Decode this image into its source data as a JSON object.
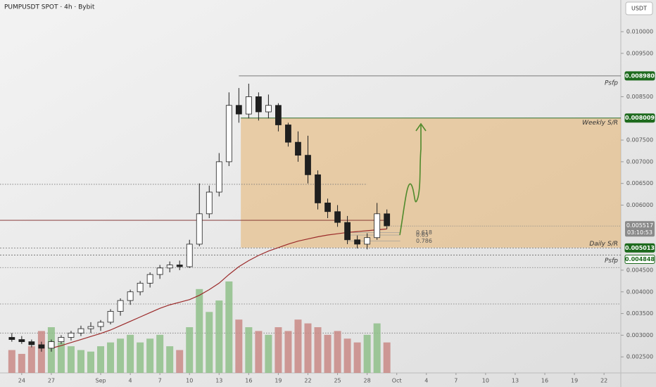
{
  "chart_data": {
    "type": "candlestick",
    "title": "PUMPUSDT SPOT · 4h · Bybit",
    "currency": "USDT",
    "x": [
      -1,
      0,
      1,
      2,
      3,
      4,
      5,
      6,
      7,
      8,
      9,
      10,
      11,
      12,
      13,
      14,
      15,
      16,
      17,
      18,
      19,
      20,
      21,
      22,
      23,
      24,
      25,
      26,
      27,
      28,
      29,
      30,
      31,
      32,
      33,
      34,
      35,
      36,
      37
    ],
    "ohlc": [
      [
        0.00295,
        0.00305,
        0.00285,
        0.0029
      ],
      [
        0.0029,
        0.00298,
        0.0028,
        0.00285
      ],
      [
        0.00285,
        0.0029,
        0.00272,
        0.00278
      ],
      [
        0.00278,
        0.00285,
        0.00262,
        0.0027
      ],
      [
        0.0027,
        0.0029,
        0.00262,
        0.00285
      ],
      [
        0.00285,
        0.003,
        0.0028,
        0.00295
      ],
      [
        0.00295,
        0.0031,
        0.00288,
        0.00305
      ],
      [
        0.00305,
        0.00322,
        0.00298,
        0.00315
      ],
      [
        0.00315,
        0.0033,
        0.00305,
        0.0032
      ],
      [
        0.0032,
        0.00335,
        0.0031,
        0.0033
      ],
      [
        0.0033,
        0.0036,
        0.00325,
        0.00355
      ],
      [
        0.00355,
        0.00385,
        0.00345,
        0.0038
      ],
      [
        0.0038,
        0.00405,
        0.0037,
        0.004
      ],
      [
        0.004,
        0.00425,
        0.00392,
        0.0042
      ],
      [
        0.0042,
        0.00445,
        0.0041,
        0.0044
      ],
      [
        0.0044,
        0.00462,
        0.0043,
        0.00455
      ],
      [
        0.00455,
        0.0047,
        0.00445,
        0.00462
      ],
      [
        0.00462,
        0.00472,
        0.0045,
        0.00458
      ],
      [
        0.00458,
        0.0052,
        0.00455,
        0.0051
      ],
      [
        0.0051,
        0.0065,
        0.00505,
        0.0058
      ],
      [
        0.0058,
        0.00645,
        0.0057,
        0.0063
      ],
      [
        0.0063,
        0.0072,
        0.0062,
        0.007
      ],
      [
        0.007,
        0.0086,
        0.0069,
        0.0083
      ],
      [
        0.0083,
        0.0087,
        0.0079,
        0.0081
      ],
      [
        0.0081,
        0.0088,
        0.008,
        0.0085
      ],
      [
        0.0085,
        0.0086,
        0.00795,
        0.00815
      ],
      [
        0.00815,
        0.00855,
        0.008,
        0.0083
      ],
      [
        0.0083,
        0.00835,
        0.0077,
        0.00785
      ],
      [
        0.00785,
        0.0079,
        0.00735,
        0.00745
      ],
      [
        0.00745,
        0.0077,
        0.007,
        0.00715
      ],
      [
        0.00715,
        0.0076,
        0.0065,
        0.0067
      ],
      [
        0.0067,
        0.0068,
        0.0059,
        0.00605
      ],
      [
        0.00605,
        0.00615,
        0.0057,
        0.00585
      ],
      [
        0.00585,
        0.006,
        0.0055,
        0.0056
      ],
      [
        0.0056,
        0.00575,
        0.0051,
        0.0052
      ],
      [
        0.0052,
        0.0053,
        0.005,
        0.0051
      ],
      [
        0.0051,
        0.00535,
        0.00498,
        0.00525
      ],
      [
        0.00525,
        0.00605,
        0.0052,
        0.0058
      ],
      [
        0.0058,
        0.0059,
        0.00545,
        0.00552
      ]
    ],
    "volume": [
      30,
      25,
      35,
      55,
      60,
      40,
      35,
      30,
      28,
      35,
      40,
      45,
      50,
      40,
      45,
      50,
      35,
      30,
      60,
      110,
      80,
      95,
      120,
      70,
      60,
      55,
      50,
      60,
      55,
      70,
      65,
      60,
      50,
      55,
      45,
      40,
      50,
      65,
      40
    ],
    "ma": [
      null,
      null,
      null,
      null,
      0.0027,
      0.00276,
      0.00283,
      0.0029,
      0.00297,
      0.00304,
      0.00312,
      0.00322,
      0.00332,
      0.00342,
      0.00352,
      0.00362,
      0.0037,
      0.00376,
      0.00382,
      0.00392,
      0.00405,
      0.0042,
      0.0044,
      0.00458,
      0.00472,
      0.00484,
      0.00494,
      0.00502,
      0.0051,
      0.00517,
      0.00522,
      0.00527,
      0.00531,
      0.00534,
      0.00537,
      0.00539,
      0.00541,
      0.00543,
      0.00545
    ],
    "up_color": "#ffffff",
    "down_color": "#1f1f1f",
    "ma_color": "#9b2a2a",
    "volume_up_color": "#8fbf8a",
    "volume_down_color": "#c98a86",
    "xlim": [
      -2.2,
      60.7
    ],
    "ylim": [
      0.00213,
      0.01073
    ],
    "xticks": [
      {
        "value": 0,
        "label": "24"
      },
      {
        "value": 3,
        "label": "27"
      },
      {
        "value": 8,
        "label": "Sep"
      },
      {
        "value": 11,
        "label": "4"
      },
      {
        "value": 14,
        "label": "7"
      },
      {
        "value": 17,
        "label": "10"
      },
      {
        "value": 20,
        "label": "13"
      },
      {
        "value": 23,
        "label": "16"
      },
      {
        "value": 26,
        "label": "19"
      },
      {
        "value": 29,
        "label": "22"
      },
      {
        "value": 32,
        "label": "25"
      },
      {
        "value": 35,
        "label": "28"
      },
      {
        "value": 38,
        "label": "Oct"
      },
      {
        "value": 41,
        "label": "4"
      },
      {
        "value": 44,
        "label": "7"
      },
      {
        "value": 47,
        "label": "10"
      },
      {
        "value": 50,
        "label": "13"
      },
      {
        "value": 53,
        "label": "16"
      },
      {
        "value": 56,
        "label": "19"
      },
      {
        "value": 59,
        "label": "22"
      }
    ],
    "yticks": [
      {
        "value": 0.01,
        "label": "0.010000"
      },
      {
        "value": 0.0095,
        "label": "0.009500"
      },
      {
        "value": 0.0085,
        "label": "0.008500"
      },
      {
        "value": 0.0075,
        "label": "0.007500"
      },
      {
        "value": 0.007,
        "label": "0.007000"
      },
      {
        "value": 0.0065,
        "label": "0.006500"
      },
      {
        "value": 0.006,
        "label": "0.006000"
      },
      {
        "value": 0.0045,
        "label": "0.004500"
      },
      {
        "value": 0.004,
        "label": "0.004000"
      },
      {
        "value": 0.0035,
        "label": "0.003500"
      },
      {
        "value": 0.003,
        "label": "0.003000"
      },
      {
        "value": 0.0025,
        "label": "0.002500"
      }
    ],
    "levels": {
      "names": [
        "Psfp",
        "Weekly S/R",
        "Daily S/R",
        "Psfp"
      ],
      "values": [
        0.00898,
        0.008009,
        0.005013,
        0.004848
      ],
      "value_labels": [
        "0.008980",
        "0.008009",
        "0.005013",
        "0.004848"
      ],
      "starts": [
        22,
        22.2,
        -2.2,
        -2.2
      ]
    },
    "zone": {
      "top": 0.008009,
      "bottom": 0.00502,
      "start": 22.2,
      "color": "#e6b36e"
    },
    "last_price": {
      "value": 0.005517,
      "label": "0.005517",
      "countdown": "03:10:53"
    },
    "poc": 0.00565,
    "dotted_levels": [
      0.00648,
      0.00456,
      0.00372,
      0.00305
    ],
    "fib_levels": [
      {
        "value": 0.618,
        "price": 0.00537
      },
      {
        "value": 0.65,
        "price": 0.00531
      },
      {
        "value": 0.786,
        "price": 0.00517
      }
    ]
  }
}
